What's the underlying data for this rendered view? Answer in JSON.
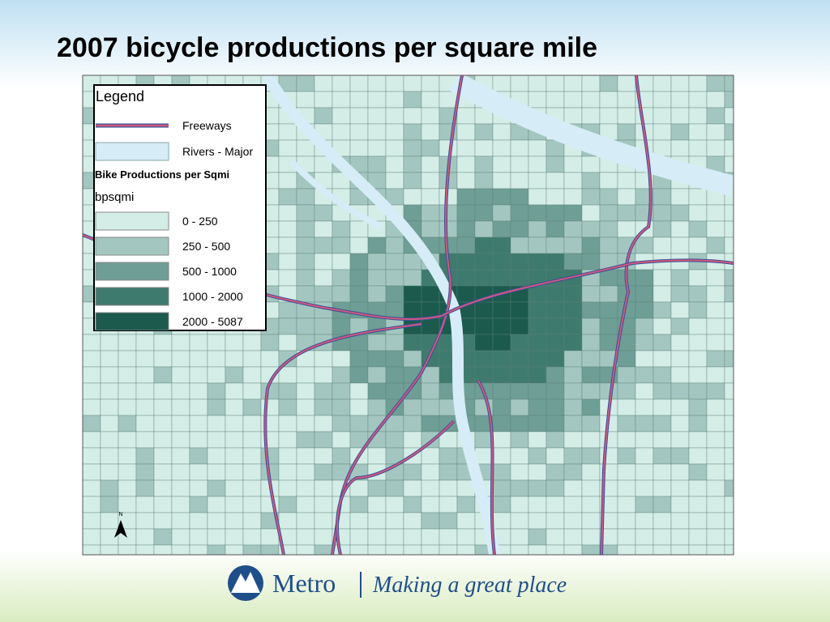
{
  "title": "2007 bicycle productions per square mile",
  "legend": {
    "title": "Legend",
    "items": [
      {
        "label": "Freeways",
        "color": "#d0587a"
      },
      {
        "label": "Rivers - Major",
        "color": "#d6ecf7"
      }
    ],
    "class_title": "Bike Productions per Sqmi",
    "field": "bpsqmi",
    "classes": [
      {
        "label": "0 - 250",
        "color": "#d4ede7"
      },
      {
        "label": "250 - 500",
        "color": "#a3c7c0"
      },
      {
        "label": "500 - 1000",
        "color": "#6e9e95"
      },
      {
        "label": "1000 - 2000",
        "color": "#3f7a6e"
      },
      {
        "label": "2000 - 5087",
        "color": "#1c5a4e"
      }
    ]
  },
  "north": "N",
  "footer": {
    "brand": "Metro",
    "tagline": "Making a great place"
  }
}
